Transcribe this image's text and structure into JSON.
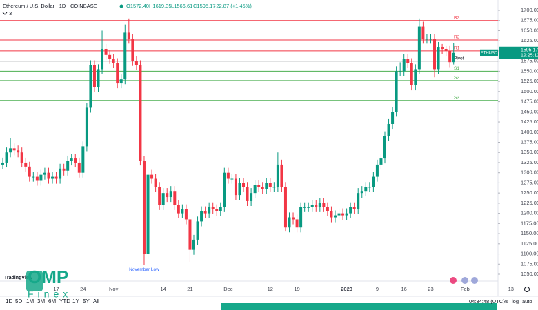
{
  "header": {
    "symbol": "Ethereum / U.S. Dollar · 1D · COINBASE",
    "open": "O1572.40",
    "high": "H1619.35",
    "low": "L1566.61",
    "close": "C1595.17",
    "change": "+22.87 (+1.45%)",
    "indicators": "3"
  },
  "chart_data": {
    "type": "candlestick",
    "up_color": "#089981",
    "down_color": "#f23645",
    "ylim": [
      1050,
      1700
    ],
    "yticks": [
      {
        "value": 1050,
        "label": "1050.00"
      },
      {
        "value": 1075,
        "label": "1075.00"
      },
      {
        "value": 1100,
        "label": "1100.00"
      },
      {
        "value": 1125,
        "label": "1125.00"
      },
      {
        "value": 1150,
        "label": "1150.00"
      },
      {
        "value": 1175,
        "label": "1175.00"
      },
      {
        "value": 1200,
        "label": "1200.00"
      },
      {
        "value": 1225,
        "label": "1225.00"
      },
      {
        "value": 1250,
        "label": "1250.00"
      },
      {
        "value": 1275,
        "label": "1275.00"
      },
      {
        "value": 1300,
        "label": "1300.00"
      },
      {
        "value": 1325,
        "label": "1325.00"
      },
      {
        "value": 1350,
        "label": "1350.00"
      },
      {
        "value": 1375,
        "label": "1375.00"
      },
      {
        "value": 1400,
        "label": "1400.00"
      },
      {
        "value": 1425,
        "label": "1425.00"
      },
      {
        "value": 1450,
        "label": "1450.00"
      },
      {
        "value": 1475,
        "label": "1475.00"
      },
      {
        "value": 1500,
        "label": "1500.00"
      },
      {
        "value": 1525,
        "label": "1525.00"
      },
      {
        "value": 1550,
        "label": "1550.00"
      },
      {
        "value": 1575,
        "label": "1575.00"
      },
      {
        "value": 1600,
        "label": "1600.00"
      },
      {
        "value": 1625,
        "label": "1625.00"
      },
      {
        "value": 1650,
        "label": "1650.00"
      },
      {
        "value": 1675,
        "label": "1675.00"
      },
      {
        "value": 1700,
        "label": "1700.00"
      }
    ],
    "categories": [
      null,
      null,
      null,
      null,
      null,
      null,
      null,
      null,
      null,
      null,
      null,
      null,
      null,
      null,
      "17",
      null,
      null,
      null,
      null,
      null,
      null,
      "24",
      null,
      null,
      null,
      null,
      null,
      null,
      null,
      "Nov",
      null,
      null,
      null,
      null,
      null,
      null,
      null,
      null,
      null,
      null,
      null,
      null,
      "14",
      null,
      null,
      null,
      null,
      null,
      null,
      "21",
      null,
      null,
      null,
      null,
      null,
      null,
      null,
      null,
      null,
      "Dec",
      null,
      null,
      null,
      null,
      null,
      null,
      null,
      null,
      null,
      null,
      "12",
      null,
      null,
      null,
      null,
      null,
      null,
      "19",
      null,
      null,
      null,
      null,
      null,
      null,
      null,
      null,
      null,
      null,
      null,
      null,
      "2023",
      null,
      null,
      null,
      null,
      null,
      null,
      null,
      "9",
      null,
      null,
      null,
      null,
      null,
      null,
      "16",
      null,
      null,
      null,
      null,
      null,
      null,
      "23",
      null,
      null,
      null,
      null,
      null,
      null,
      null,
      null,
      "Feb",
      null,
      null,
      null,
      null,
      null,
      null,
      null,
      null,
      null,
      null,
      null,
      "13"
    ],
    "open": [
      1320,
      1325,
      1350,
      1360,
      1355,
      1350,
      1325,
      1315,
      1290,
      1290,
      1280,
      1295,
      1300,
      1285,
      1290,
      1285,
      1310,
      1305,
      1330,
      1335,
      1325,
      1300,
      1365,
      1460,
      1565,
      1510,
      1555,
      1605,
      1590,
      1580,
      1570,
      1520,
      1530,
      1645,
      1630,
      1575,
      1565,
      1330,
      1100,
      1295,
      1285,
      1265,
      1220,
      1250,
      1240,
      1255,
      1220,
      1200,
      1210,
      1185,
      1110,
      1135,
      1180,
      1205,
      1200,
      1215,
      1210,
      1205,
      1215,
      1300,
      1285,
      1285,
      1245,
      1275,
      1265,
      1230,
      1250,
      1270,
      1265,
      1260,
      1275,
      1265,
      1265,
      1320,
      1265,
      1165,
      1190,
      1185,
      1165,
      1215,
      1215,
      1215,
      1220,
      1215,
      1225,
      1215,
      1205,
      1190,
      1195,
      1200,
      1195,
      1200,
      1215,
      1210,
      1250,
      1255,
      1265,
      1265,
      1290,
      1320,
      1335,
      1390,
      1420,
      1450,
      1550,
      1550,
      1580,
      1570,
      1515,
      1555,
      1660,
      1630,
      1630,
      1630,
      1555,
      1610,
      1605,
      1600,
      1572.4,
      null,
      null,
      null,
      null,
      null,
      null,
      null,
      null,
      null,
      null,
      null,
      null,
      null,
      null,
      null
    ],
    "high": [
      1337,
      1362,
      1385,
      1372,
      1367,
      1362,
      1337,
      1327,
      1302,
      1302,
      1307,
      1312,
      1312,
      1302,
      1302,
      1322,
      1322,
      1342,
      1347,
      1347,
      1337,
      1377,
      1472,
      1577,
      1577,
      1567,
      1650,
      1617,
      1602,
      1592,
      1582,
      1542,
      1665,
      1680,
      1642,
      1587,
      1577,
      1342,
      1307,
      1307,
      1297,
      1277,
      1262,
      1262,
      1267,
      1267,
      1232,
      1222,
      1222,
      1197,
      1147,
      1192,
      1217,
      1217,
      1227,
      1227,
      1222,
      1227,
      1312,
      1312,
      1297,
      1297,
      1287,
      1287,
      1277,
      1262,
      1282,
      1282,
      1277,
      1287,
      1287,
      1277,
      1350,
      1332,
      1277,
      1202,
      1202,
      1197,
      1227,
      1227,
      1227,
      1232,
      1232,
      1237,
      1237,
      1227,
      1217,
      1207,
      1212,
      1212,
      1212,
      1227,
      1227,
      1262,
      1267,
      1277,
      1277,
      1302,
      1332,
      1347,
      1402,
      1432,
      1462,
      1562,
      1572,
      1592,
      1592,
      1582,
      1567,
      1680,
      1672,
      1642,
      1642,
      1642,
      1622,
      1617,
      1612,
      1612,
      1619.35,
      null,
      null,
      null,
      null,
      null,
      null,
      null,
      null,
      null,
      null,
      null,
      null,
      null,
      null,
      null
    ],
    "low": [
      1308,
      1313,
      1338,
      1343,
      1338,
      1313,
      1303,
      1278,
      1278,
      1268,
      1268,
      1283,
      1273,
      1273,
      1273,
      1273,
      1293,
      1293,
      1318,
      1313,
      1288,
      1288,
      1353,
      1448,
      1498,
      1498,
      1543,
      1578,
      1568,
      1558,
      1508,
      1508,
      1518,
      1618,
      1563,
      1553,
      1318,
      1073,
      1088,
      1273,
      1253,
      1208,
      1208,
      1228,
      1228,
      1208,
      1188,
      1188,
      1173,
      1080,
      1098,
      1123,
      1168,
      1188,
      1188,
      1198,
      1193,
      1193,
      1203,
      1273,
      1273,
      1233,
      1233,
      1253,
      1218,
      1218,
      1238,
      1253,
      1248,
      1248,
      1253,
      1253,
      1253,
      1253,
      1155,
      1153,
      1173,
      1153,
      1153,
      1203,
      1203,
      1203,
      1203,
      1203,
      1203,
      1193,
      1178,
      1178,
      1183,
      1183,
      1183,
      1188,
      1198,
      1198,
      1238,
      1243,
      1253,
      1253,
      1278,
      1308,
      1323,
      1378,
      1408,
      1438,
      1538,
      1538,
      1558,
      1503,
      1503,
      1543,
      1618,
      1618,
      1618,
      1535,
      1543,
      1593,
      1588,
      1560,
      1566.61,
      null,
      null,
      null,
      null,
      null,
      null,
      null,
      null,
      null,
      null,
      null,
      null,
      null,
      null,
      null
    ],
    "close": [
      1325,
      1350,
      1360,
      1355,
      1350,
      1325,
      1315,
      1290,
      1290,
      1280,
      1295,
      1300,
      1285,
      1290,
      1285,
      1310,
      1305,
      1330,
      1335,
      1325,
      1300,
      1365,
      1460,
      1565,
      1510,
      1555,
      1605,
      1590,
      1580,
      1570,
      1520,
      1530,
      1645,
      1630,
      1575,
      1565,
      1330,
      1100,
      1295,
      1285,
      1265,
      1220,
      1250,
      1240,
      1255,
      1220,
      1200,
      1210,
      1185,
      1110,
      1135,
      1180,
      1205,
      1200,
      1215,
      1210,
      1205,
      1215,
      1300,
      1285,
      1285,
      1245,
      1275,
      1265,
      1230,
      1250,
      1270,
      1265,
      1260,
      1275,
      1265,
      1265,
      1320,
      1265,
      1165,
      1190,
      1185,
      1165,
      1215,
      1215,
      1215,
      1220,
      1215,
      1225,
      1215,
      1205,
      1190,
      1195,
      1200,
      1195,
      1200,
      1215,
      1210,
      1250,
      1255,
      1265,
      1265,
      1290,
      1320,
      1335,
      1390,
      1420,
      1450,
      1550,
      1550,
      1580,
      1570,
      1515,
      1555,
      1660,
      1630,
      1630,
      1630,
      1555,
      1610,
      1605,
      1600,
      1572.4,
      1595.17,
      null,
      null,
      null,
      null,
      null,
      null,
      null,
      null,
      null,
      null,
      null,
      null,
      null,
      null,
      null
    ],
    "pivots": [
      {
        "label": "R3",
        "value": 1675,
        "color": "#f23645"
      },
      {
        "label": "R2",
        "value": 1627,
        "color": "#f23645"
      },
      {
        "label": "R1",
        "value": 1600,
        "color": "#f23645"
      },
      {
        "label": "Pivot",
        "value": 1575,
        "color": "#131722"
      },
      {
        "label": "S1",
        "value": 1550,
        "color": "#4caf50"
      },
      {
        "label": "S2",
        "value": 1527,
        "color": "#4caf50"
      },
      {
        "label": "S3",
        "value": 1478,
        "color": "#4caf50"
      }
    ],
    "annotation": {
      "text": "November Low",
      "value": 1073
    },
    "last_price": {
      "symbol": "ETHUSD",
      "value": 1595.17,
      "label": "1595.17",
      "countdown": "19:25:12"
    }
  },
  "footer": {
    "timeframes": [
      "1D",
      "5D",
      "1M",
      "3M",
      "6M",
      "YTD",
      "1Y",
      "5Y",
      "All"
    ],
    "time": "04:34:48 (UTC)",
    "percent": "%",
    "log": "log",
    "auto": "auto"
  },
  "watermark": {
    "brand": "OMP",
    "sub": "Finex",
    "logo": "TradingView"
  }
}
